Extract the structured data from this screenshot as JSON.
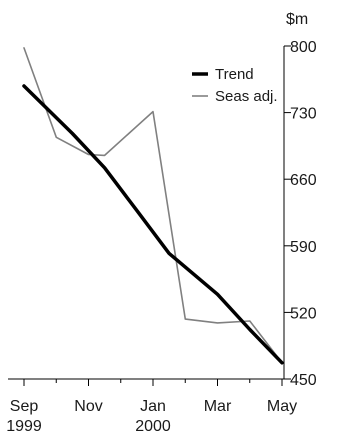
{
  "chart_data": {
    "type": "line",
    "y_unit": "$m",
    "x": [
      "Sep 1999",
      "Oct 1999",
      "Nov 1999",
      "Dec 1999",
      "Jan 2000",
      "Feb 2000",
      "Mar 2000",
      "Apr 2000",
      "May 2000"
    ],
    "x_tick_labels": [
      {
        "line1": "Sep",
        "line2": "1999",
        "x_index": 0
      },
      {
        "line1": "Nov",
        "line2": "",
        "x_index": 2
      },
      {
        "line1": "Jan",
        "line2": "2000",
        "x_index": 4
      },
      {
        "line1": "Mar",
        "line2": "",
        "x_index": 6
      },
      {
        "line1": "May",
        "line2": "",
        "x_index": 8
      }
    ],
    "x_minor_tick_indices": [
      1,
      3,
      5,
      7
    ],
    "ylim": [
      450,
      800
    ],
    "y_ticks": [
      450,
      520,
      590,
      660,
      730,
      800
    ],
    "y_axis_side": "right",
    "grid": false,
    "legend_position": "top-right",
    "series": [
      {
        "name": "Trend",
        "color": "#000000",
        "style": "thick",
        "points": [
          [
            0,
            758
          ],
          [
            1.5,
            708
          ],
          [
            2.5,
            672
          ],
          [
            3.5,
            627
          ],
          [
            4.5,
            582
          ],
          [
            6,
            539
          ],
          [
            7,
            502
          ],
          [
            8,
            467
          ]
        ]
      },
      {
        "name": "Seas adj.",
        "color": "#808080",
        "style": "thin",
        "points": [
          [
            0,
            798
          ],
          [
            1,
            704
          ],
          [
            2,
            686
          ],
          [
            2.5,
            685
          ],
          [
            4,
            731
          ],
          [
            5,
            513
          ],
          [
            6,
            509
          ],
          [
            7,
            511
          ],
          [
            8,
            467
          ]
        ]
      }
    ]
  }
}
